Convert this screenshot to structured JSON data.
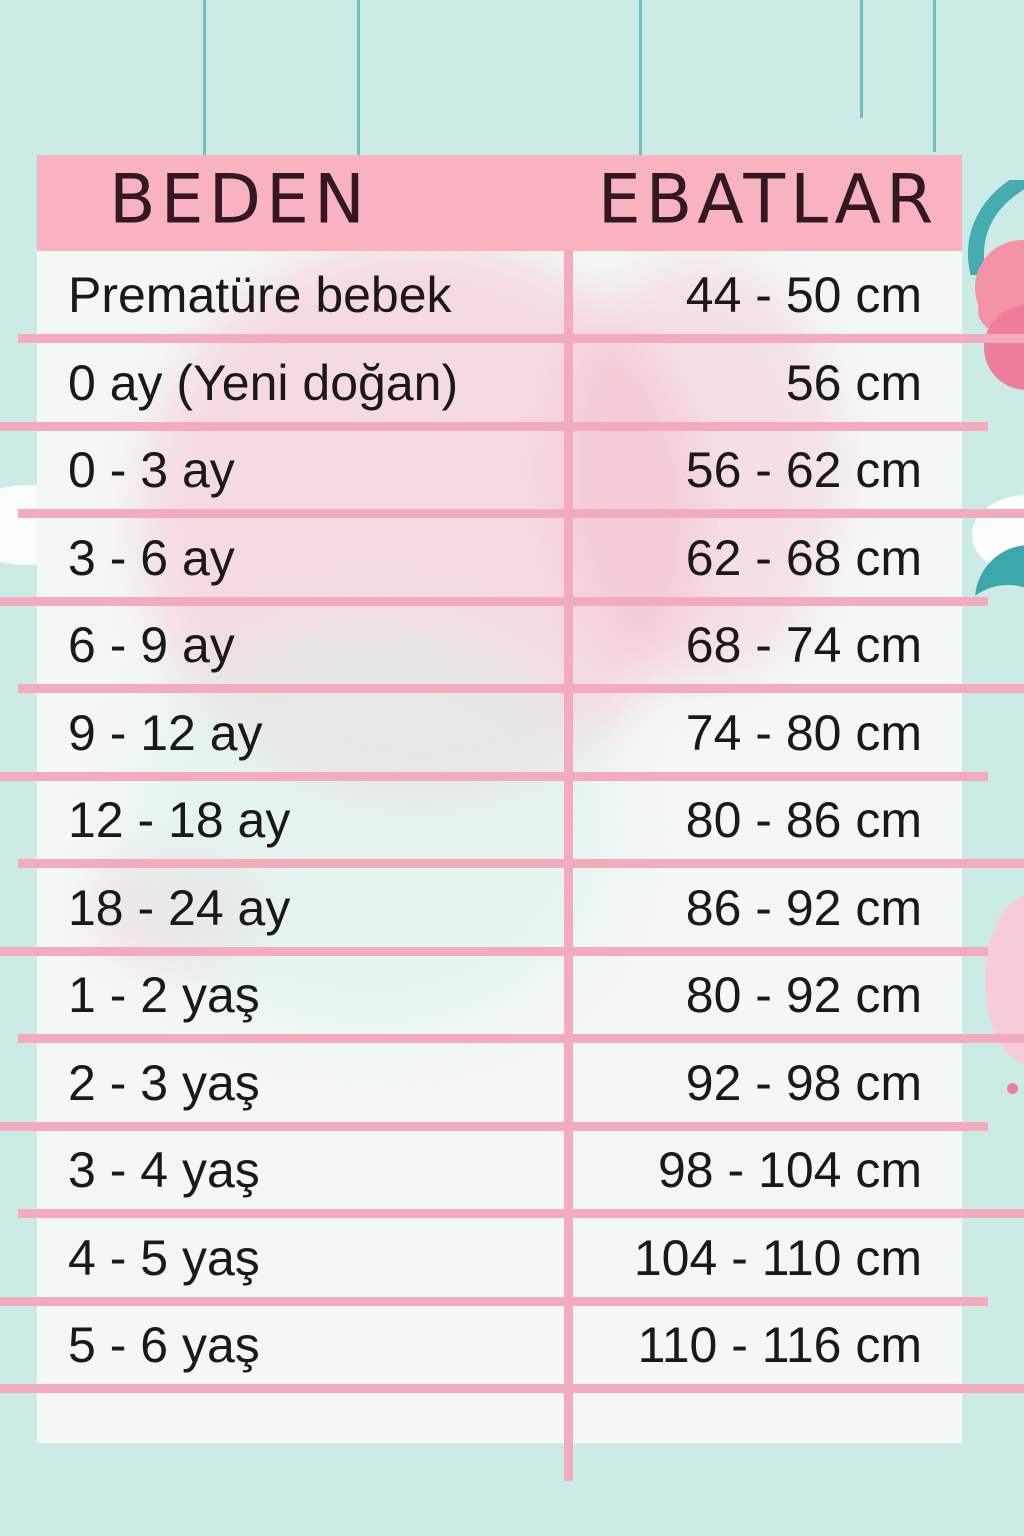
{
  "chart_data": {
    "type": "table",
    "title": "",
    "columns": [
      "BEDEN",
      "EBATLAR"
    ],
    "rows": [
      [
        "Prematüre bebek",
        "44 - 50 cm"
      ],
      [
        "0 ay (Yeni doğan)",
        "56 cm"
      ],
      [
        "0 - 3 ay",
        "56 - 62 cm"
      ],
      [
        "3 - 6 ay",
        "62 - 68 cm"
      ],
      [
        "6 - 9 ay",
        "68 - 74 cm"
      ],
      [
        "9 - 12 ay",
        "74 - 80 cm"
      ],
      [
        "12 - 18 ay",
        "80 - 86 cm"
      ],
      [
        "18 - 24 ay",
        "86 - 92 cm"
      ],
      [
        "1 - 2 yaş",
        "80 - 92 cm"
      ],
      [
        "2 - 3 yaş",
        "92 - 98 cm"
      ],
      [
        "3 - 4 yaş",
        "98 - 104 cm"
      ],
      [
        "4 - 5 yaş",
        "104 - 110 cm"
      ],
      [
        "5 - 6 yaş",
        "110 - 116 cm"
      ]
    ],
    "legend_position": "none",
    "grid": "pink separator lines between rows, pink vertical divider between columns"
  },
  "colors": {
    "bg": "#cdebe6",
    "headerPink": "#f8b2c0",
    "linePink": "#f3acbe",
    "cellWhite": "#f4f8f5",
    "textDark": "#191919",
    "headerText": "#33191f",
    "stringTeal": "#72bfc1",
    "tealDeco": "#45acb2",
    "tealDeco2": "#3ba7ad",
    "blobPink": "#f492a8",
    "blobPinkDark": "#ee7f9b",
    "bandPink": "#f8cdd8"
  }
}
